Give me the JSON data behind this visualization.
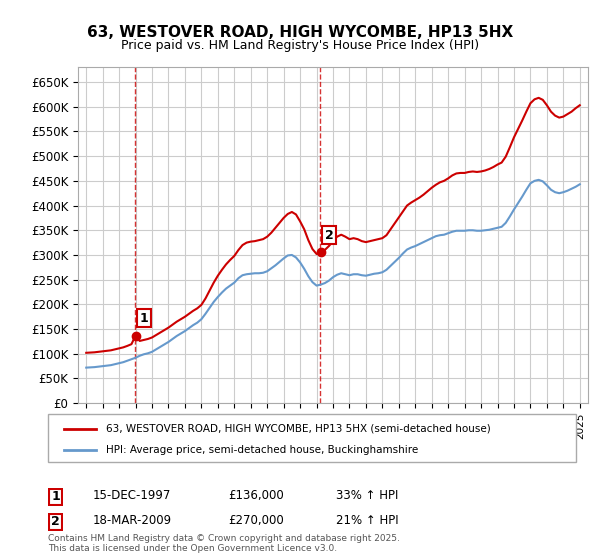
{
  "title": "63, WESTOVER ROAD, HIGH WYCOMBE, HP13 5HX",
  "subtitle": "Price paid vs. HM Land Registry's House Price Index (HPI)",
  "ylabel_ticks": [
    "£0",
    "£50K",
    "£100K",
    "£150K",
    "£200K",
    "£250K",
    "£300K",
    "£350K",
    "£400K",
    "£450K",
    "£500K",
    "£550K",
    "£600K",
    "£650K"
  ],
  "ytick_values": [
    0,
    50000,
    100000,
    150000,
    200000,
    250000,
    300000,
    350000,
    400000,
    450000,
    500000,
    550000,
    600000,
    650000
  ],
  "ylim": [
    0,
    680000
  ],
  "xlim_years": [
    1994.5,
    2025.5
  ],
  "purchase1": {
    "year": 1997.96,
    "price": 136000,
    "label": "1",
    "date": "15-DEC-1997",
    "hpi_pct": "33% ↑ HPI"
  },
  "purchase2": {
    "year": 2009.21,
    "price": 270000,
    "label": "2",
    "date": "18-MAR-2009",
    "hpi_pct": "21% ↑ HPI"
  },
  "red_line_color": "#cc0000",
  "blue_line_color": "#6699cc",
  "dashed_line_color": "#cc0000",
  "grid_color": "#cccccc",
  "bg_color": "#ffffff",
  "legend_label_red": "63, WESTOVER ROAD, HIGH WYCOMBE, HP13 5HX (semi-detached house)",
  "legend_label_blue": "HPI: Average price, semi-detached house, Buckinghamshire",
  "footer": "Contains HM Land Registry data © Crown copyright and database right 2025.\nThis data is licensed under the Open Government Licence v3.0.",
  "hpi_data": {
    "years": [
      1995.0,
      1995.25,
      1995.5,
      1995.75,
      1996.0,
      1996.25,
      1996.5,
      1996.75,
      1997.0,
      1997.25,
      1997.5,
      1997.75,
      1998.0,
      1998.25,
      1998.5,
      1998.75,
      1999.0,
      1999.25,
      1999.5,
      1999.75,
      2000.0,
      2000.25,
      2000.5,
      2000.75,
      2001.0,
      2001.25,
      2001.5,
      2001.75,
      2002.0,
      2002.25,
      2002.5,
      2002.75,
      2003.0,
      2003.25,
      2003.5,
      2003.75,
      2004.0,
      2004.25,
      2004.5,
      2004.75,
      2005.0,
      2005.25,
      2005.5,
      2005.75,
      2006.0,
      2006.25,
      2006.5,
      2006.75,
      2007.0,
      2007.25,
      2007.5,
      2007.75,
      2008.0,
      2008.25,
      2008.5,
      2008.75,
      2009.0,
      2009.25,
      2009.5,
      2009.75,
      2010.0,
      2010.25,
      2010.5,
      2010.75,
      2011.0,
      2011.25,
      2011.5,
      2011.75,
      2012.0,
      2012.25,
      2012.5,
      2012.75,
      2013.0,
      2013.25,
      2013.5,
      2013.75,
      2014.0,
      2014.25,
      2014.5,
      2014.75,
      2015.0,
      2015.25,
      2015.5,
      2015.75,
      2016.0,
      2016.25,
      2016.5,
      2016.75,
      2017.0,
      2017.25,
      2017.5,
      2017.75,
      2018.0,
      2018.25,
      2018.5,
      2018.75,
      2019.0,
      2019.25,
      2019.5,
      2019.75,
      2020.0,
      2020.25,
      2020.5,
      2020.75,
      2021.0,
      2021.25,
      2021.5,
      2021.75,
      2022.0,
      2022.25,
      2022.5,
      2022.75,
      2023.0,
      2023.25,
      2023.5,
      2023.75,
      2024.0,
      2024.25,
      2024.5,
      2024.75,
      2025.0
    ],
    "values": [
      72000,
      72500,
      73000,
      74000,
      75000,
      76000,
      77000,
      79000,
      81000,
      83000,
      86000,
      89000,
      92000,
      96000,
      99000,
      101000,
      104000,
      109000,
      114000,
      119000,
      124000,
      130000,
      136000,
      141000,
      146000,
      152000,
      158000,
      163000,
      170000,
      181000,
      193000,
      205000,
      215000,
      224000,
      232000,
      238000,
      244000,
      253000,
      259000,
      261000,
      262000,
      263000,
      263000,
      264000,
      267000,
      273000,
      279000,
      286000,
      293000,
      299000,
      300000,
      295000,
      285000,
      272000,
      257000,
      245000,
      238000,
      240000,
      243000,
      248000,
      255000,
      260000,
      263000,
      261000,
      259000,
      261000,
      261000,
      259000,
      258000,
      260000,
      262000,
      263000,
      265000,
      270000,
      278000,
      286000,
      294000,
      303000,
      311000,
      315000,
      318000,
      322000,
      326000,
      330000,
      334000,
      338000,
      340000,
      341000,
      344000,
      347000,
      349000,
      349000,
      349000,
      350000,
      350000,
      349000,
      349000,
      350000,
      351000,
      353000,
      355000,
      357000,
      365000,
      378000,
      392000,
      405000,
      418000,
      432000,
      445000,
      450000,
      452000,
      449000,
      441000,
      432000,
      427000,
      425000,
      427000,
      430000,
      434000,
      438000,
      443000
    ],
    "red_values": [
      102000,
      102500,
      103000,
      104000,
      105000,
      106000,
      107000,
      109000,
      111000,
      113000,
      116000,
      119500,
      137000,
      126000,
      128000,
      130000,
      133000,
      138000,
      143000,
      148000,
      153000,
      159000,
      165000,
      170000,
      175000,
      181000,
      187000,
      192000,
      199000,
      212000,
      228000,
      244000,
      258000,
      270000,
      281000,
      290000,
      298000,
      310000,
      320000,
      325000,
      327000,
      328000,
      330000,
      332000,
      337000,
      345000,
      355000,
      365000,
      375000,
      383000,
      387000,
      382000,
      368000,
      352000,
      330000,
      312000,
      302000,
      305000,
      310000,
      318000,
      328000,
      337000,
      341000,
      337000,
      332000,
      334000,
      332000,
      328000,
      326000,
      328000,
      330000,
      332000,
      334000,
      340000,
      352000,
      364000,
      376000,
      388000,
      400000,
      406000,
      411000,
      416000,
      422000,
      429000,
      436000,
      442000,
      447000,
      450000,
      455000,
      461000,
      465000,
      466000,
      466000,
      468000,
      469000,
      468000,
      469000,
      471000,
      474000,
      478000,
      483000,
      487000,
      499000,
      518000,
      538000,
      555000,
      572000,
      590000,
      607000,
      615000,
      618000,
      614000,
      603000,
      590000,
      582000,
      578000,
      580000,
      585000,
      590000,
      597000,
      603000
    ]
  }
}
